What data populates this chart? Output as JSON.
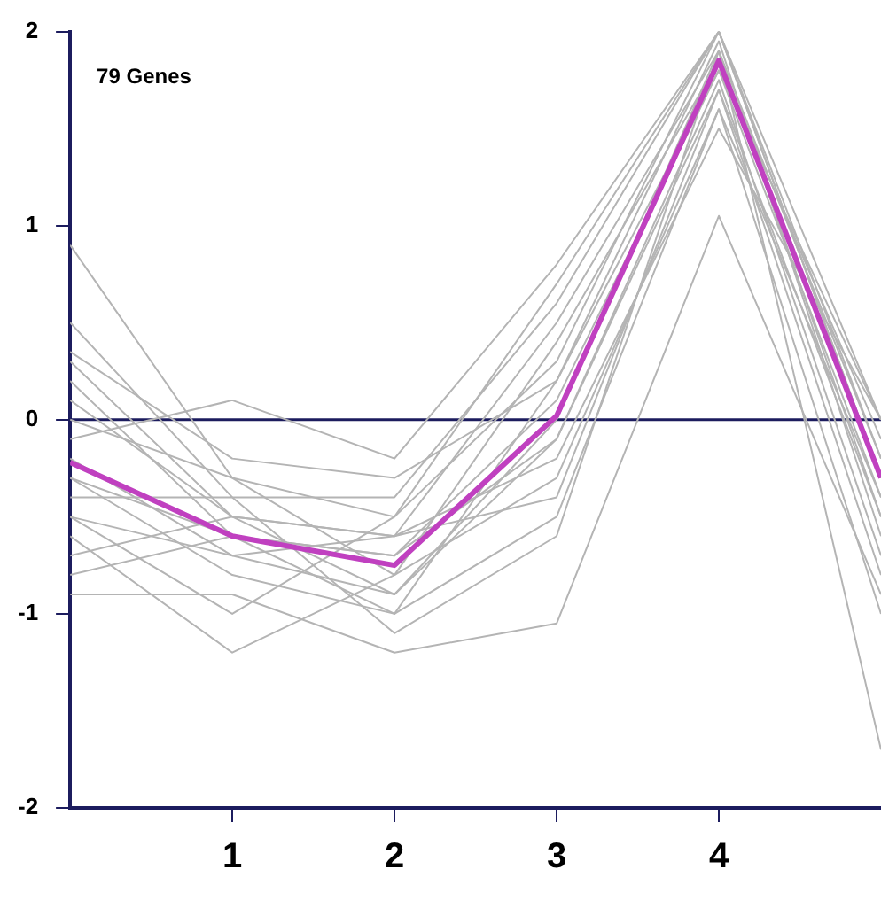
{
  "chart_data": {
    "type": "line",
    "annotations": [
      "79 Genes"
    ],
    "x": [
      0,
      1,
      2,
      3,
      4,
      5
    ],
    "xlim": [
      0,
      5
    ],
    "xticks": [
      1,
      2,
      3,
      4
    ],
    "ylim": [
      -2,
      2
    ],
    "yticks": [
      -2,
      -1,
      0,
      1,
      2
    ],
    "grid": false,
    "legend": false,
    "marker": "none",
    "line_style": "solid",
    "ref_lines": [
      {
        "axis": "y",
        "value": 0,
        "color": "#1c1c5e"
      }
    ],
    "series": [
      {
        "color": "#b4b4b4",
        "values": [
          0.3,
          -0.5,
          -0.6,
          0.5,
          1.9,
          -0.5
        ]
      },
      {
        "color": "#b4b4b4",
        "values": [
          -0.5,
          -0.7,
          -0.9,
          -0.1,
          1.7,
          -0.8
        ]
      },
      {
        "color": "#b4b4b4",
        "values": [
          0.9,
          -0.3,
          -0.5,
          0.3,
          2.0,
          0.0
        ]
      },
      {
        "color": "#b4b4b4",
        "values": [
          -0.6,
          -1.2,
          -0.8,
          -0.3,
          1.6,
          -1.0
        ]
      },
      {
        "color": "#b4b4b4",
        "values": [
          -0.1,
          0.1,
          -0.2,
          0.8,
          2.0,
          -0.2
        ]
      },
      {
        "color": "#b4b4b4",
        "values": [
          -0.4,
          -0.4,
          -1.1,
          -0.6,
          1.9,
          -1.7
        ]
      },
      {
        "color": "#b4b4b4",
        "values": [
          0.2,
          -0.6,
          -0.7,
          0.1,
          1.8,
          -0.4
        ]
      },
      {
        "color": "#b4b4b4",
        "values": [
          -0.3,
          -0.8,
          -1.0,
          0.2,
          1.95,
          -0.6
        ]
      },
      {
        "color": "#b4b4b4",
        "values": [
          -0.7,
          -0.5,
          -0.6,
          -0.2,
          1.5,
          0.0
        ]
      },
      {
        "color": "#b4b4b4",
        "values": [
          0.5,
          -0.4,
          -0.4,
          0.6,
          2.0,
          -0.3
        ]
      },
      {
        "color": "#b4b4b4",
        "values": [
          -0.9,
          -0.9,
          -1.2,
          -1.05,
          1.05,
          -0.9
        ]
      },
      {
        "color": "#b4b4b4",
        "values": [
          0.0,
          -0.3,
          -0.8,
          0.4,
          1.85,
          -0.1
        ]
      },
      {
        "color": "#b4b4b4",
        "values": [
          -0.2,
          -0.7,
          -0.6,
          -0.4,
          1.7,
          -0.5
        ]
      },
      {
        "color": "#b4b4b4",
        "values": [
          0.1,
          -0.5,
          -0.9,
          0.0,
          1.9,
          -0.2
        ]
      },
      {
        "color": "#b4b4b4",
        "values": [
          -0.5,
          -1.0,
          -0.5,
          0.7,
          2.0,
          -0.3
        ]
      },
      {
        "color": "#b4b4b4",
        "values": [
          -0.3,
          -0.6,
          -0.7,
          -0.1,
          1.75,
          -0.7
        ]
      },
      {
        "color": "#b4b4b4",
        "values": [
          0.35,
          -0.2,
          -0.3,
          0.2,
          1.8,
          0.0
        ]
      },
      {
        "color": "#b4b4b4",
        "values": [
          -0.8,
          -0.6,
          -1.0,
          -0.5,
          1.6,
          -0.4
        ]
      },
      {
        "color": "#c040c0",
        "values": [
          -0.22,
          -0.6,
          -0.75,
          0.02,
          1.85,
          -0.3
        ]
      }
    ]
  }
}
